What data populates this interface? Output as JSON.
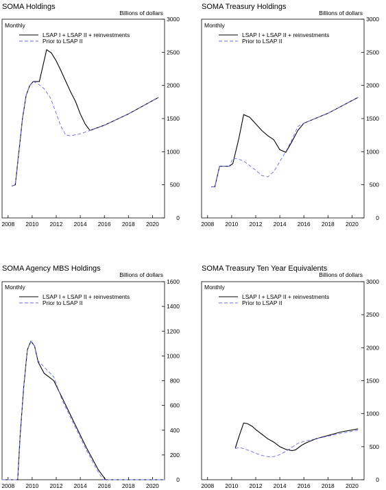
{
  "chart_data": [
    {
      "type": "line",
      "title": "SOMA Holdings",
      "frequency_note": "Monthly",
      "unit_label": "Billions of dollars",
      "ylim": [
        0,
        3000
      ],
      "yticks": [
        0,
        500,
        1000,
        1500,
        2000,
        2500,
        3000
      ],
      "xlim": [
        2007.5,
        2021.0
      ],
      "xticks": [
        2008,
        2010,
        2012,
        2014,
        2016,
        2018,
        2020
      ],
      "legend_position": "top-left",
      "series": [
        {
          "name": "LSAP I + LSAP II + reinvestments",
          "color": "#000000",
          "dash": "solid",
          "x": [
            2008.3,
            2008.6,
            2008.9,
            2009.2,
            2009.5,
            2009.8,
            2010.1,
            2010.6,
            2010.9,
            2011.2,
            2011.6,
            2012.0,
            2012.4,
            2012.8,
            2013.2,
            2013.6,
            2014.0,
            2014.4,
            2014.8,
            2016.0,
            2018.0,
            2020.5
          ],
          "y": [
            480,
            500,
            1000,
            1500,
            1850,
            2000,
            2060,
            2060,
            2300,
            2540,
            2490,
            2370,
            2220,
            2060,
            1900,
            1760,
            1570,
            1420,
            1320,
            1400,
            1570,
            1820
          ]
        },
        {
          "name": "Prior to LSAP II",
          "color": "#6a6ae8",
          "dash": "dashed",
          "x": [
            2008.3,
            2008.6,
            2008.9,
            2009.2,
            2009.5,
            2009.8,
            2010.1,
            2010.5,
            2011.0,
            2011.5,
            2012.0,
            2012.4,
            2012.8,
            2013.2,
            2014.0,
            2015.0,
            2016.0,
            2018.0,
            2020.5
          ],
          "y": [
            480,
            500,
            1000,
            1500,
            1850,
            2000,
            2060,
            2020,
            1950,
            1820,
            1580,
            1380,
            1250,
            1240,
            1270,
            1330,
            1400,
            1570,
            1820
          ]
        }
      ]
    },
    {
      "type": "line",
      "title": "SOMA Treasury Holdings",
      "frequency_note": "Monthly",
      "unit_label": "Billions of dollars",
      "ylim": [
        0,
        3000
      ],
      "yticks": [
        0,
        500,
        1000,
        1500,
        2000,
        2500,
        3000
      ],
      "xlim": [
        2007.5,
        2021.0
      ],
      "xticks": [
        2008,
        2010,
        2012,
        2014,
        2016,
        2018,
        2020
      ],
      "legend_position": "top-left",
      "series": [
        {
          "name": "LSAP I + LSAP II + reinvestments",
          "color": "#000000",
          "dash": "solid",
          "x": [
            2008.3,
            2008.6,
            2009.0,
            2009.4,
            2009.8,
            2010.1,
            2010.6,
            2011.0,
            2011.5,
            2012.0,
            2012.5,
            2013.0,
            2013.5,
            2014.0,
            2014.5,
            2015.0,
            2015.5,
            2016.0,
            2018.0,
            2020.5
          ],
          "y": [
            470,
            470,
            780,
            780,
            780,
            820,
            1200,
            1560,
            1520,
            1420,
            1320,
            1240,
            1180,
            1030,
            990,
            1150,
            1320,
            1430,
            1580,
            1820
          ]
        },
        {
          "name": "Prior to LSAP II",
          "color": "#6a6ae8",
          "dash": "dashed",
          "x": [
            2008.3,
            2008.6,
            2009.0,
            2009.4,
            2009.8,
            2010.1,
            2010.5,
            2011.0,
            2011.5,
            2012.0,
            2012.5,
            2013.0,
            2013.5,
            2014.0,
            2014.5,
            2015.0,
            2015.5,
            2016.0,
            2018.0,
            2020.5
          ],
          "y": [
            470,
            470,
            780,
            780,
            780,
            900,
            890,
            860,
            790,
            720,
            640,
            620,
            700,
            850,
            1000,
            1180,
            1380,
            1430,
            1580,
            1820
          ]
        }
      ]
    },
    {
      "type": "line",
      "title": "SOMA Agency MBS Holdings",
      "frequency_note": "Monthly",
      "unit_label": "Billions of dollars",
      "ylim": [
        0,
        1600
      ],
      "yticks": [
        0,
        200,
        400,
        600,
        800,
        1000,
        1200,
        1400,
        1600
      ],
      "xlim": [
        2007.5,
        2021.0
      ],
      "xticks": [
        2008,
        2010,
        2012,
        2014,
        2016,
        2018,
        2020
      ],
      "legend_position": "top-left",
      "series": [
        {
          "name": "LSAP I + LSAP II + reinvestments",
          "color": "#000000",
          "dash": "solid",
          "x": [
            2007.5,
            2008.8,
            2009.0,
            2009.3,
            2009.6,
            2009.9,
            2010.2,
            2010.5,
            2011.0,
            2011.8,
            2012.5,
            2013.5,
            2014.5,
            2015.5,
            2016.1,
            2018.0,
            2021.0
          ],
          "y": [
            0,
            0,
            350,
            750,
            1050,
            1120,
            1080,
            950,
            860,
            800,
            660,
            460,
            260,
            80,
            0,
            0,
            0
          ]
        },
        {
          "name": "Prior to LSAP II",
          "color": "#6a6ae8",
          "dash": "dashed",
          "x": [
            2007.5,
            2008.8,
            2009.0,
            2009.3,
            2009.6,
            2009.9,
            2010.2,
            2010.5,
            2011.0,
            2011.8,
            2012.5,
            2013.5,
            2014.5,
            2015.5,
            2015.9,
            2018.0,
            2021.0
          ],
          "y": [
            0,
            0,
            350,
            750,
            1050,
            1120,
            1080,
            960,
            910,
            830,
            640,
            440,
            240,
            60,
            0,
            0,
            0
          ]
        }
      ]
    },
    {
      "type": "line",
      "title": "SOMA Treasury Ten Year Equivalents",
      "frequency_note": "Monthly",
      "unit_label": "Billions of dollars",
      "ylim": [
        0,
        3000
      ],
      "yticks": [
        0,
        500,
        1000,
        1500,
        2000,
        2500,
        3000
      ],
      "xlim": [
        2007.5,
        2021.0
      ],
      "xticks": [
        2008,
        2010,
        2012,
        2014,
        2016,
        2018,
        2020
      ],
      "legend_position": "top-left",
      "series": [
        {
          "name": "LSAP I + LSAP II + reinvestments",
          "color": "#000000",
          "dash": "solid",
          "x": [
            2010.3,
            2010.6,
            2011.0,
            2011.3,
            2011.7,
            2012.0,
            2012.5,
            2013.0,
            2013.5,
            2014.0,
            2014.5,
            2015.0,
            2015.3,
            2015.8,
            2016.2,
            2017.0,
            2018.0,
            2019.0,
            2020.5
          ],
          "y": [
            480,
            650,
            860,
            850,
            810,
            760,
            690,
            620,
            570,
            500,
            460,
            440,
            450,
            520,
            560,
            620,
            670,
            720,
            770
          ]
        },
        {
          "name": "Prior to LSAP II",
          "color": "#6a6ae8",
          "dash": "dashed",
          "x": [
            2010.3,
            2010.6,
            2011.0,
            2011.5,
            2012.0,
            2012.5,
            2013.0,
            2013.5,
            2014.0,
            2014.5,
            2015.0,
            2015.5,
            2016.0,
            2017.0,
            2018.0,
            2019.0,
            2020.5
          ],
          "y": [
            470,
            490,
            470,
            440,
            400,
            370,
            350,
            350,
            380,
            430,
            490,
            550,
            580,
            620,
            660,
            700,
            750
          ]
        }
      ]
    }
  ]
}
